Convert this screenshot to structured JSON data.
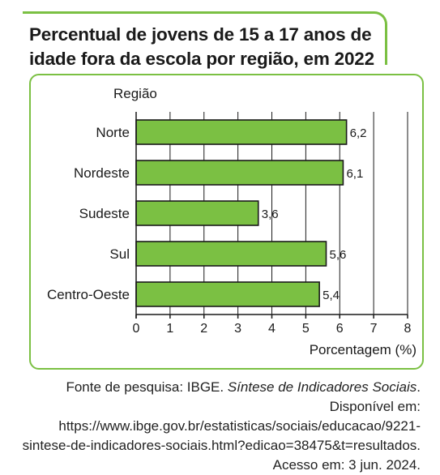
{
  "title": "Percentual de jovens de 15 a 17 anos de idade fora da escola por região, em 2022",
  "source": {
    "prefix": "Fonte de pesquisa: IBGE. ",
    "work": "Síntese de Indicadores Sociais",
    "suffix": ". Disponível em: https://www.ibge.gov.br/estatisticas/sociais/educacao/9221-sintese-de-indicadores-sociais.html?edicao=38475&t=resultados. Acesso em: 3 jun. 2024."
  },
  "colors": {
    "accent_border": "#7bc043",
    "bar_fill": "#7bc043",
    "bar_stroke": "#1a1a1a"
  },
  "chart_data": {
    "type": "bar",
    "orientation": "horizontal",
    "categories": [
      "Norte",
      "Nordeste",
      "Sudeste",
      "Sul",
      "Centro-Oeste"
    ],
    "values": [
      6.2,
      6.1,
      3.6,
      5.6,
      5.4
    ],
    "value_labels": [
      "6,2",
      "6,1",
      "3,6",
      "5,6",
      "5,4"
    ],
    "xlabel": "Porcentagem (%)",
    "ylabel": "Região",
    "xlim": [
      0,
      8
    ],
    "xticks": [
      0,
      1,
      2,
      3,
      4,
      5,
      6,
      7,
      8
    ],
    "grid": "vertical"
  }
}
